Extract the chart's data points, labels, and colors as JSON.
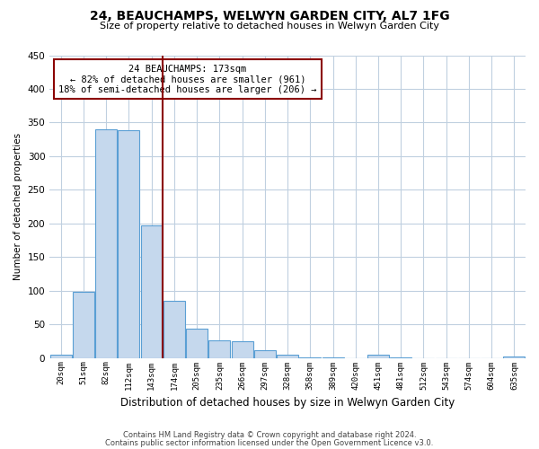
{
  "title": "24, BEAUCHAMPS, WELWYN GARDEN CITY, AL7 1FG",
  "subtitle": "Size of property relative to detached houses in Welwyn Garden City",
  "xlabel": "Distribution of detached houses by size in Welwyn Garden City",
  "ylabel": "Number of detached properties",
  "footnote1": "Contains HM Land Registry data © Crown copyright and database right 2024.",
  "footnote2": "Contains public sector information licensed under the Open Government Licence v3.0.",
  "annotation_line1": "24 BEAUCHAMPS: 173sqm",
  "annotation_line2": "← 82% of detached houses are smaller (961)",
  "annotation_line3": "18% of semi-detached houses are larger (206) →",
  "bar_labels": [
    "20sqm",
    "51sqm",
    "82sqm",
    "112sqm",
    "143sqm",
    "174sqm",
    "205sqm",
    "235sqm",
    "266sqm",
    "297sqm",
    "328sqm",
    "358sqm",
    "389sqm",
    "420sqm",
    "451sqm",
    "481sqm",
    "512sqm",
    "543sqm",
    "574sqm",
    "604sqm",
    "635sqm"
  ],
  "bar_values": [
    5,
    98,
    340,
    338,
    197,
    85,
    43,
    26,
    25,
    11,
    5,
    1,
    1,
    0,
    5,
    1,
    0,
    0,
    0,
    0,
    2
  ],
  "bar_color": "#c5d8ed",
  "bar_edge_color": "#5a9fd4",
  "vline_color": "#8b0000",
  "ylim": [
    0,
    450
  ],
  "yticks": [
    0,
    50,
    100,
    150,
    200,
    250,
    300,
    350,
    400,
    450
  ],
  "annotation_box_color": "#8b0000",
  "background_color": "#ffffff",
  "grid_color": "#c0d0e0"
}
